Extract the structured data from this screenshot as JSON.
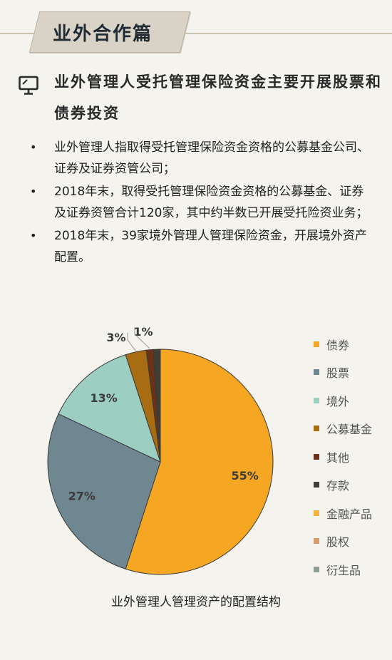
{
  "banner": {
    "title": "业外合作篇"
  },
  "heading": {
    "text": "业外管理人受托管理保险资金主要开展股票和债券投资"
  },
  "bullets": [
    "业外管理人指取得受托管理保险资金资格的公募基金公司、证券及证券资管公司；",
    "2018年末，取得受托管理保险资金资格的公募基金、证券及证券资管合计120家，其中约半数已开展受托险资业务；",
    "2018年末，39家境外管理人管理保险资金，开展境外资产配置。"
  ],
  "bullet_symbol": "•",
  "chart_data": {
    "type": "pie",
    "title": "业外管理人管理资产的配置结构",
    "legend_position": "right",
    "series": [
      {
        "name": "债券",
        "value": 55,
        "label": "55%",
        "color": "#f5a623"
      },
      {
        "name": "股票",
        "value": 27,
        "label": "27%",
        "color": "#6f8791"
      },
      {
        "name": "境外",
        "value": 13,
        "label": "13%",
        "color": "#9ccfc2"
      },
      {
        "name": "公募基金",
        "value": 3,
        "label": "3%",
        "color": "#a86c12"
      },
      {
        "name": "其他",
        "value": 1,
        "label": "1%",
        "color": "#6b3218"
      },
      {
        "name": "存款",
        "value": 1,
        "label": "",
        "color": "#3f3f36"
      },
      {
        "name": "金融产品",
        "value": 0,
        "label": "",
        "color": "#f2b436"
      },
      {
        "name": "股权",
        "value": 0,
        "label": "",
        "color": "#d79a6a"
      },
      {
        "name": "衍生品",
        "value": 0,
        "label": "",
        "color": "#8d9e96"
      }
    ]
  }
}
